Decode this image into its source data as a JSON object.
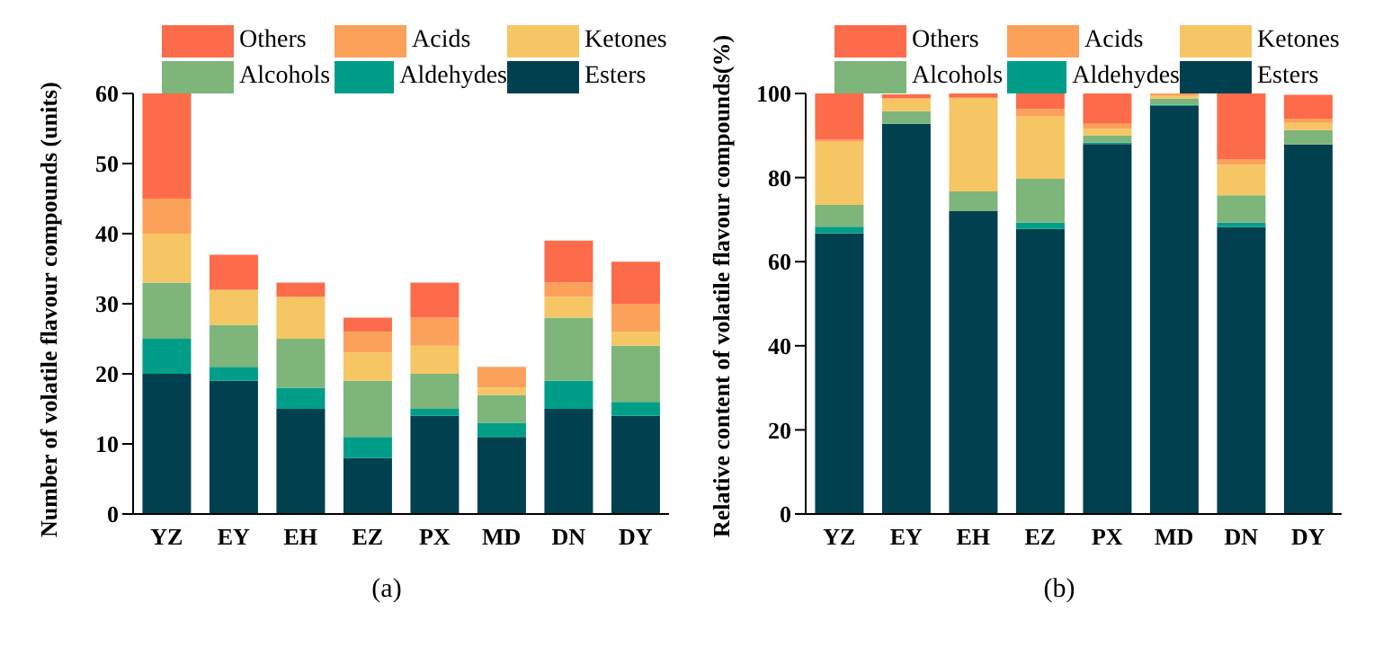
{
  "chart_data": [
    {
      "type": "bar",
      "stacked": true,
      "ylabel": "Number of volatile flavour compounds (units)",
      "categories": [
        "YZ",
        "EY",
        "EH",
        "EZ",
        "PX",
        "MD",
        "DN",
        "DY"
      ],
      "ylim": [
        0,
        60
      ],
      "yticks": [
        0,
        10,
        20,
        30,
        40,
        50,
        60
      ],
      "grid": false,
      "legend": "top",
      "annotations": [
        "(a)"
      ],
      "series": [
        {
          "name": "Esters",
          "color": "#01404f",
          "values": [
            20,
            19,
            15,
            8,
            14,
            11,
            15,
            14
          ]
        },
        {
          "name": "Aldehydes",
          "color": "#009e88",
          "values": [
            5,
            2,
            3,
            3,
            1,
            2,
            4,
            2
          ]
        },
        {
          "name": "Alcohols",
          "color": "#7db57a",
          "values": [
            8,
            6,
            7,
            8,
            5,
            4,
            9,
            8
          ]
        },
        {
          "name": "Ketones",
          "color": "#f6c664",
          "values": [
            7,
            5,
            6,
            4,
            4,
            1,
            3,
            2
          ]
        },
        {
          "name": "Acids",
          "color": "#fba15a",
          "values": [
            5,
            0,
            0,
            3,
            4,
            3,
            2,
            4
          ]
        },
        {
          "name": "Others",
          "color": "#fc6c4a",
          "values": [
            15,
            5,
            2,
            2,
            5,
            0,
            6,
            6
          ]
        }
      ]
    },
    {
      "type": "bar",
      "stacked": true,
      "ylabel": "Relative content of volatile flavour compounds(%)",
      "categories": [
        "YZ",
        "EY",
        "EH",
        "EZ",
        "PX",
        "MD",
        "DN",
        "DY"
      ],
      "ylim": [
        0,
        100
      ],
      "yticks": [
        0,
        20,
        40,
        60,
        80,
        100
      ],
      "grid": false,
      "legend": "top",
      "annotations": [
        "(b)"
      ],
      "series": [
        {
          "name": "Esters",
          "color": "#01404f",
          "values": [
            66.7,
            92.8,
            72,
            67.8,
            88,
            97,
            68.2,
            87.9
          ]
        },
        {
          "name": "Aldehydes",
          "color": "#009e88",
          "values": [
            1.6,
            null,
            0,
            1.5,
            0.3,
            0.3,
            1.1,
            null
          ]
        },
        {
          "name": "Alcohols",
          "color": "#7db57a",
          "values": [
            5.2,
            3,
            4.7,
            10.4,
            1.7,
            1.5,
            6.5,
            3.4
          ]
        },
        {
          "name": "Ketones",
          "color": "#f6c664",
          "values": [
            15,
            3,
            22.3,
            14.8,
            1.6,
            0.6,
            7.2,
            1.7
          ]
        },
        {
          "name": "Acids",
          "color": "#fba15a",
          "values": [
            0.5,
            0,
            0,
            1.8,
            1.2,
            0.6,
            1.3,
            1
          ]
        },
        {
          "name": "Others",
          "color": "#fc6c4a",
          "values": [
            11,
            1,
            1,
            3.7,
            7.2,
            0,
            15.7,
            5.7
          ]
        }
      ]
    }
  ]
}
